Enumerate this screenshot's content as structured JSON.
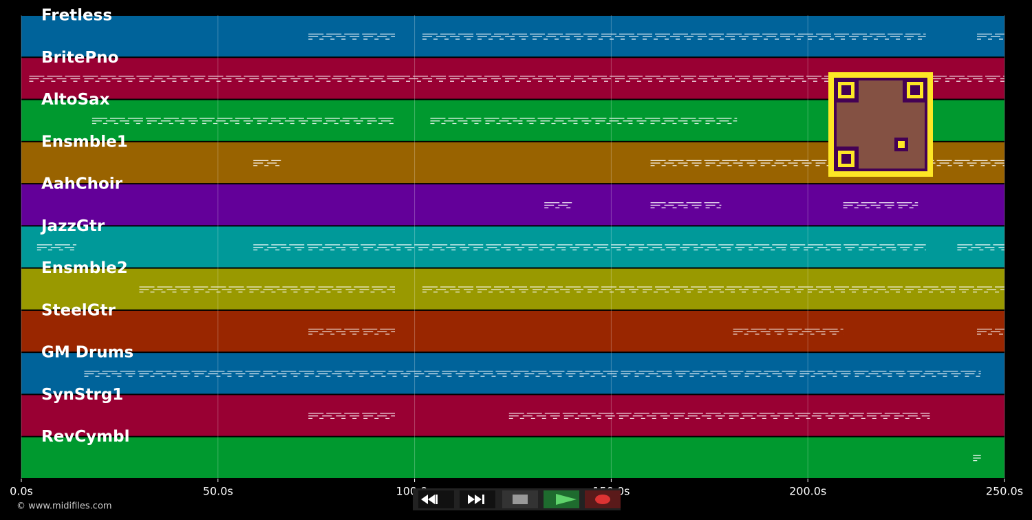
{
  "chart_data": {
    "type": "piano-roll",
    "xlim": [
      0,
      250
    ],
    "xticks": [
      {
        "value": 0,
        "label": "0.0s"
      },
      {
        "value": 50,
        "label": "50.0s"
      },
      {
        "value": 100,
        "label": "100.0s"
      },
      {
        "value": 150,
        "label": "150.0s"
      },
      {
        "value": 200,
        "label": "200.0s"
      },
      {
        "value": 250,
        "label": "250.0s"
      }
    ],
    "grid": true,
    "tracks": [
      {
        "name": "Fretless",
        "color": "#00639a",
        "notes": [
          [
            73,
            95
          ],
          [
            102,
            230
          ],
          [
            243,
            250
          ]
        ]
      },
      {
        "name": "BritePno",
        "color": "#990033",
        "notes": [
          [
            2,
            95
          ],
          [
            95,
            250
          ]
        ]
      },
      {
        "name": "AltoSax",
        "color": "#00992f",
        "notes": [
          [
            18,
            95
          ],
          [
            104,
            182
          ]
        ]
      },
      {
        "name": "Ensmble1",
        "color": "#996300",
        "notes": [
          [
            59,
            66
          ],
          [
            160,
            250
          ]
        ]
      },
      {
        "name": "AahChoir",
        "color": "#630099",
        "notes": [
          [
            133,
            140
          ],
          [
            160,
            178
          ],
          [
            209,
            228
          ]
        ]
      },
      {
        "name": "JazzGtr",
        "color": "#009999",
        "notes": [
          [
            4,
            14
          ],
          [
            59,
            230
          ],
          [
            238,
            250
          ]
        ]
      },
      {
        "name": "Ensmble2",
        "color": "#999900",
        "notes": [
          [
            30,
            95
          ],
          [
            102,
            250
          ]
        ]
      },
      {
        "name": "SteelGtr",
        "color": "#992600",
        "notes": [
          [
            73,
            95
          ],
          [
            181,
            209
          ],
          [
            243,
            250
          ]
        ]
      },
      {
        "name": "GM Drums",
        "color": "#00639a",
        "notes": [
          [
            16,
            244
          ]
        ]
      },
      {
        "name": "SynStrg1",
        "color": "#990033",
        "notes": [
          [
            73,
            95
          ],
          [
            124,
            231
          ]
        ]
      },
      {
        "name": "RevCymbl",
        "color": "#00992f",
        "notes": [
          [
            242,
            244
          ]
        ]
      }
    ]
  },
  "footer": {
    "copyright": "© www.midifiles.com"
  }
}
